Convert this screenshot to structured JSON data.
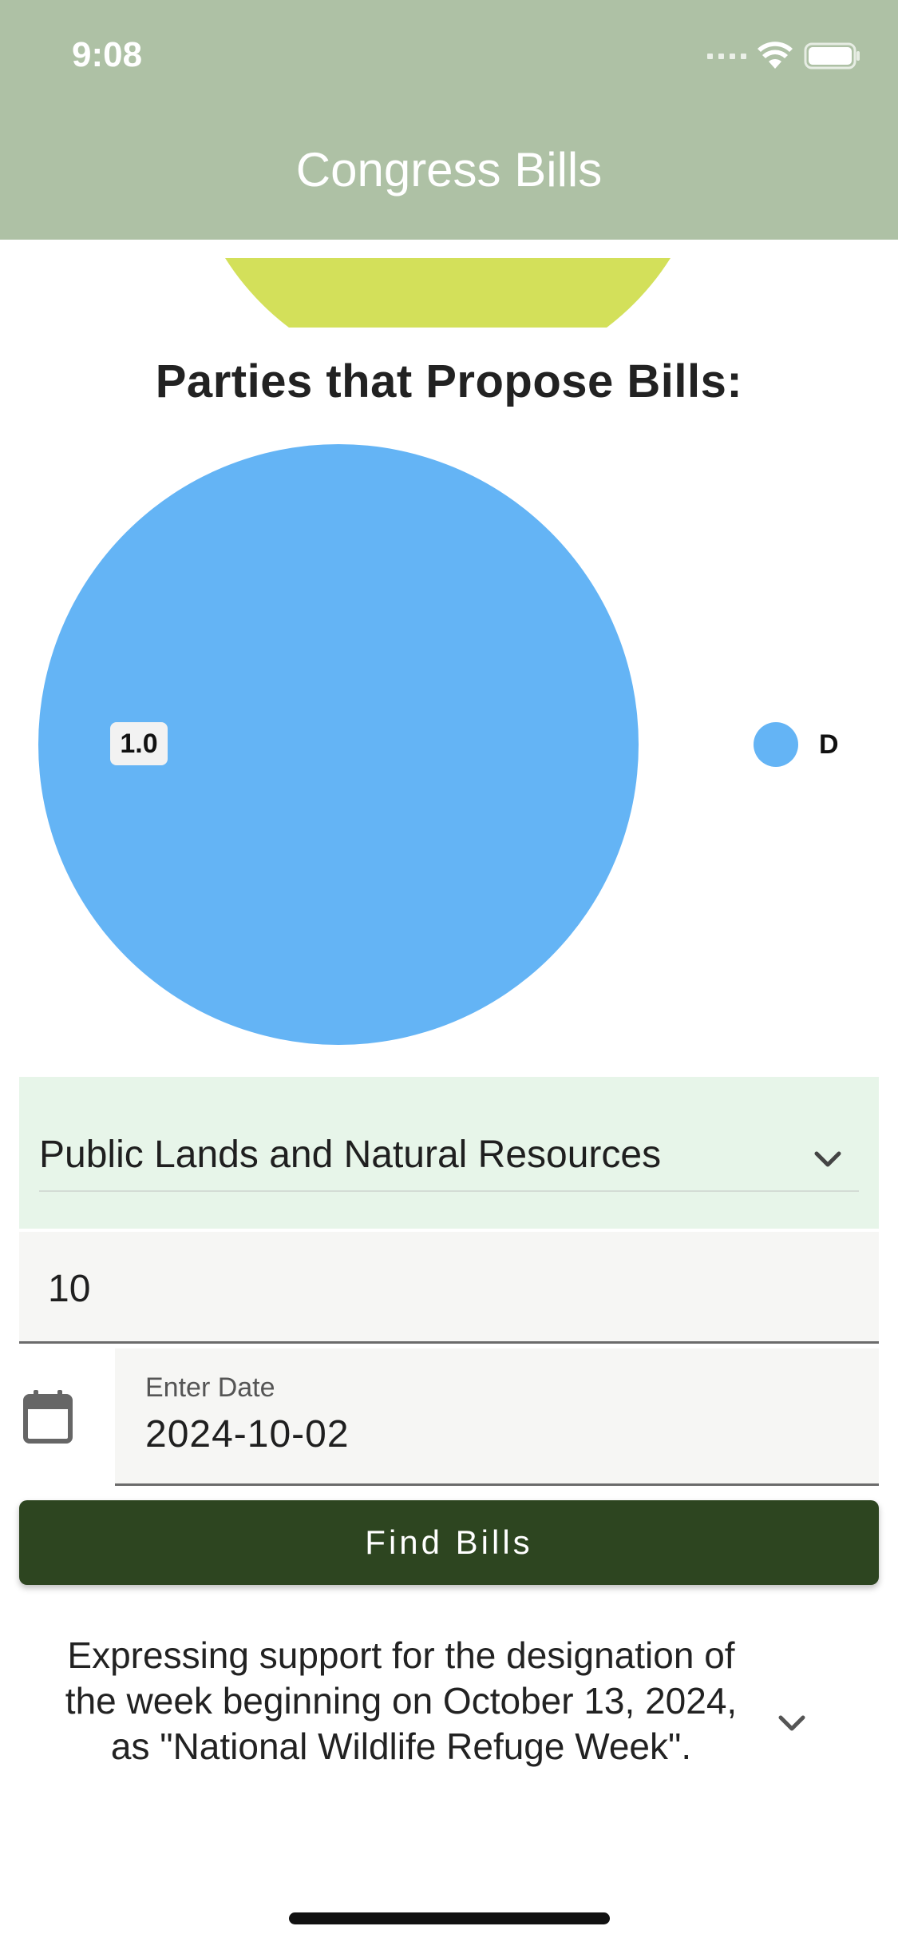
{
  "status_bar": {
    "time": "9:08"
  },
  "app_bar": {
    "title": "Congress Bills"
  },
  "colors": {
    "app_bar": "#aec1a5",
    "previous_chart_slice": "#d3e05a",
    "slice_d": "#64b4f5",
    "dropdown_bg": "#e7f5e9",
    "button_bg": "#2d4520"
  },
  "chart_data": {
    "type": "pie",
    "title": "Parties that Propose Bills:",
    "categories": [
      "D"
    ],
    "values": [
      1.0
    ],
    "value_labels": [
      "1.0"
    ],
    "legend_position": "right"
  },
  "subject_dropdown": {
    "selected": "Public Lands and Natural Resources",
    "icon": "chevron-down-icon"
  },
  "count_field": {
    "value": "10"
  },
  "date_field": {
    "label": "Enter Date",
    "value": "2024-10-02",
    "icon": "calendar-icon"
  },
  "find_button": {
    "label": "Find Bills"
  },
  "results": [
    {
      "title": "Expressing support for the designation of the week beginning on October 13, 2024, as \"National Wildlife Refuge Week\"."
    }
  ]
}
